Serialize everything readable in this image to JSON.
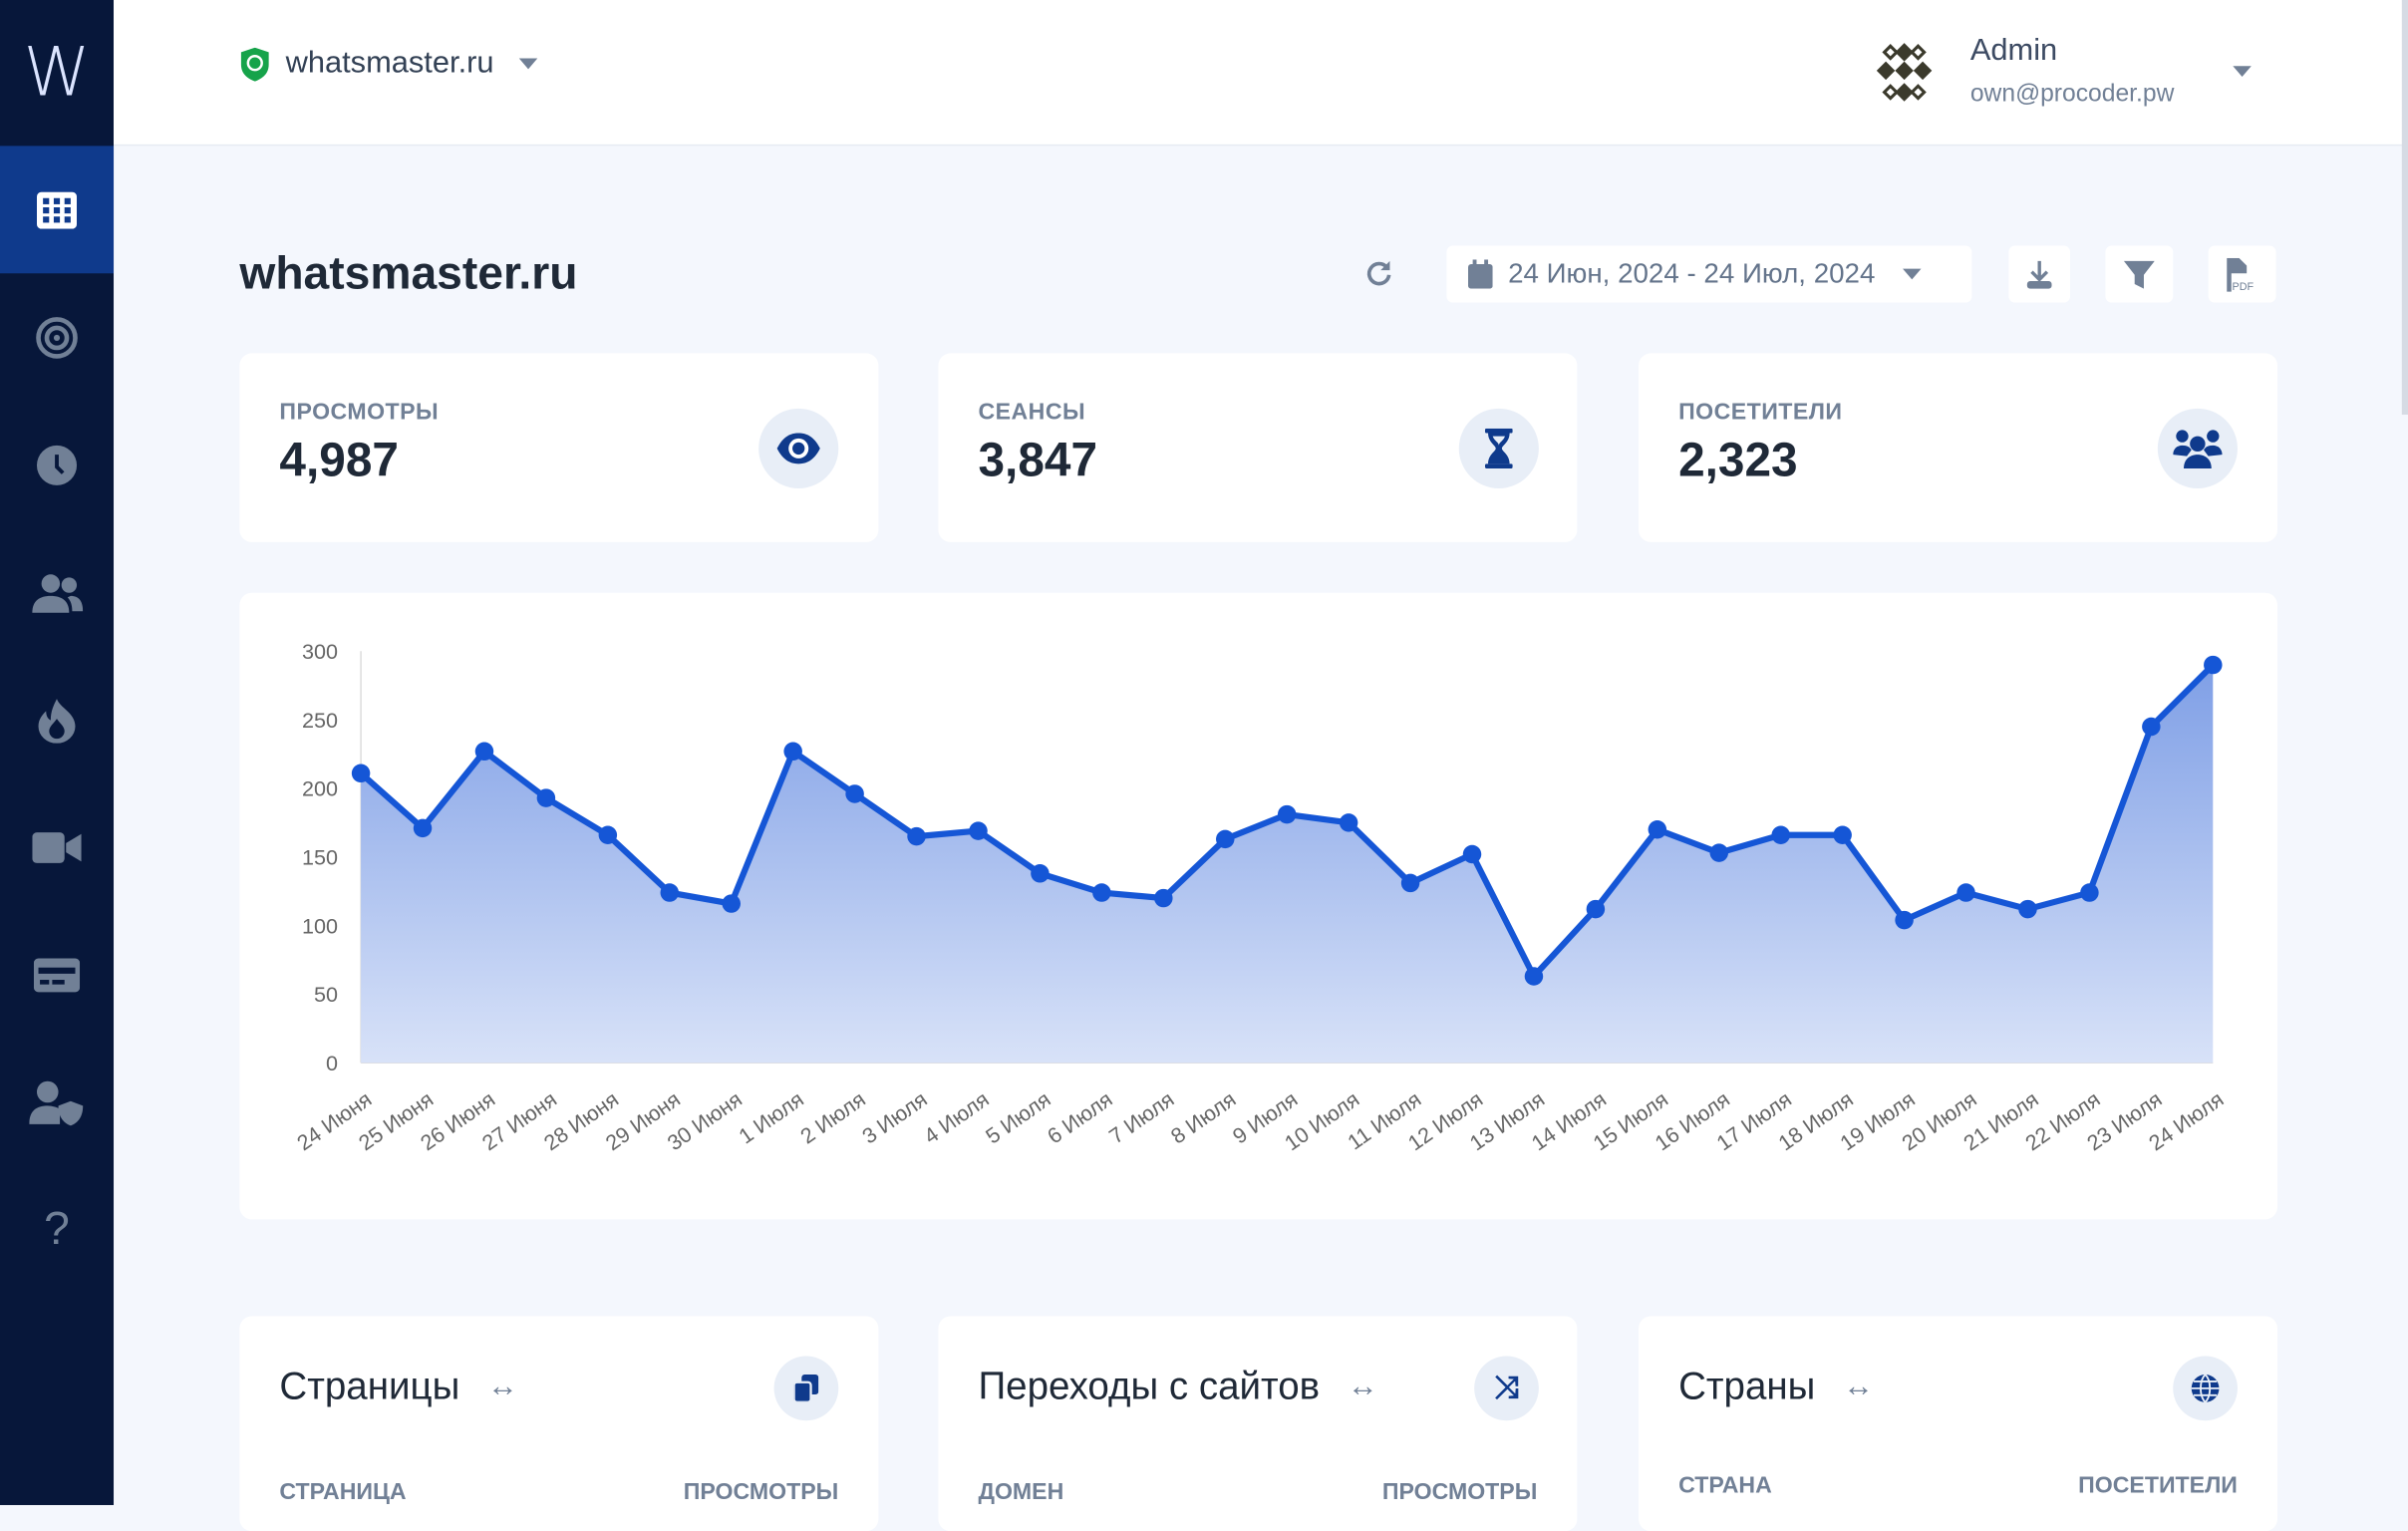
{
  "sidebar": {
    "logo": "W",
    "items": [
      {
        "name": "dashboard",
        "icon": "grid-icon",
        "active": true
      },
      {
        "name": "goals",
        "icon": "target-icon"
      },
      {
        "name": "realtime",
        "icon": "clock-icon"
      },
      {
        "name": "visitors",
        "icon": "users-icon"
      },
      {
        "name": "heatmaps",
        "icon": "fire-icon"
      },
      {
        "name": "recordings",
        "icon": "video-icon"
      },
      {
        "name": "billing",
        "icon": "credit-card-icon"
      },
      {
        "name": "team",
        "icon": "user-shield-icon"
      },
      {
        "name": "help",
        "icon": "question-icon",
        "glyph": "?"
      }
    ]
  },
  "header": {
    "site": "whatsmaster.ru",
    "user": {
      "name": "Admin",
      "email": "own@procoder.pw"
    }
  },
  "page": {
    "title": "whatsmaster.ru",
    "date_range": "24 Июн, 2024 - 24 Июл, 2024",
    "pdf_label": "PDF"
  },
  "stats": [
    {
      "label": "ПРОСМОТРЫ",
      "value": "4,987",
      "icon": "eye-icon"
    },
    {
      "label": "СЕАНСЫ",
      "value": "3,847",
      "icon": "hourglass-icon"
    },
    {
      "label": "ПОСЕТИТЕЛИ",
      "value": "2,323",
      "icon": "users-icon"
    }
  ],
  "chart_data": {
    "type": "area",
    "categories": [
      "24 Июня",
      "25 Июня",
      "26 Июня",
      "27 Июня",
      "28 Июня",
      "29 Июня",
      "30 Июня",
      "1 Июля",
      "2 Июля",
      "3 Июля",
      "4 Июля",
      "5 Июля",
      "6 Июля",
      "7 Июля",
      "8 Июля",
      "9 Июля",
      "10 Июля",
      "11 Июля",
      "12 Июля",
      "13 Июля",
      "14 Июля",
      "15 Июля",
      "16 Июля",
      "17 Июля",
      "18 Июля",
      "19 Июля",
      "20 Июля",
      "21 Июля",
      "22 Июля",
      "23 Июля",
      "24 Июля"
    ],
    "values": [
      211,
      171,
      227,
      193,
      166,
      124,
      116,
      227,
      196,
      165,
      169,
      138,
      124,
      120,
      163,
      181,
      175,
      131,
      152,
      63,
      112,
      170,
      153,
      166,
      166,
      104,
      124,
      112,
      124,
      245,
      290
    ],
    "yticks": [
      "0",
      "50",
      "100",
      "150",
      "200",
      "250",
      "300"
    ],
    "ylim": [
      0,
      300
    ],
    "color": "#1556d6",
    "grid": false,
    "legend": "none"
  },
  "bottom": [
    {
      "title": "Страницы",
      "icon": "copy-icon",
      "col1": "СТРАНИЦА",
      "col2": "ПРОСМОТРЫ"
    },
    {
      "title": "Переходы с сайтов",
      "icon": "shuffle-icon",
      "col1": "ДОМЕН",
      "col2": "ПРОСМОТРЫ"
    },
    {
      "title": "Страны",
      "icon": "globe-icon",
      "col1": "СТРАНА",
      "col2": "ПОСЕТИТЕЛИ"
    }
  ]
}
